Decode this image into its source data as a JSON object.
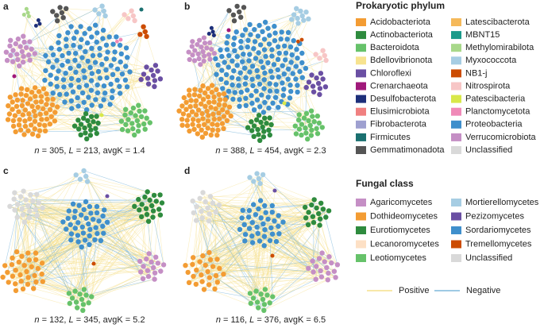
{
  "panels": [
    {
      "label": "a",
      "caption": [
        "n",
        " = 305, ",
        "L",
        " = 213, avgK = 1.4"
      ]
    },
    {
      "label": "b",
      "caption": [
        "n",
        " = 388, ",
        "L",
        " = 454, avgK = 2.3"
      ]
    },
    {
      "label": "c",
      "caption": [
        "n",
        " = 132, ",
        "L",
        " = 345, avgK = 5.2"
      ]
    },
    {
      "label": "d",
      "caption": [
        "n",
        " = 116, ",
        "L",
        " = 376, avgK = 6.5"
      ]
    }
  ],
  "legend_prokaryotic": {
    "title": "Prokaryotic phylum",
    "items": [
      {
        "name": "Acidobacteriota",
        "color": "#f39c33"
      },
      {
        "name": "Actinobacteriota",
        "color": "#2e8b3e"
      },
      {
        "name": "Bacteroidota",
        "color": "#66c26a"
      },
      {
        "name": "Bdellovibrionota",
        "color": "#f7e38f"
      },
      {
        "name": "Chloroflexi",
        "color": "#6a4fa3"
      },
      {
        "name": "Crenarchaeota",
        "color": "#a0197a"
      },
      {
        "name": "Desulfobacterota",
        "color": "#1d2f7a"
      },
      {
        "name": "Elusimicrobiota",
        "color": "#f08080"
      },
      {
        "name": "Fibrobacterota",
        "color": "#9ea0d0"
      },
      {
        "name": "Firmicutes",
        "color": "#1a7070"
      },
      {
        "name": "Gemmatimonadota",
        "color": "#555555"
      },
      {
        "name": "Latescibacterota",
        "color": "#f5b95a"
      },
      {
        "name": "MBNT15",
        "color": "#1a9a8a"
      },
      {
        "name": "Methylomirabilota",
        "color": "#a8d88a"
      },
      {
        "name": "Myxococcota",
        "color": "#a6cde3"
      },
      {
        "name": "NB1-j",
        "color": "#cc4c02"
      },
      {
        "name": "Nitrospirota",
        "color": "#f7c6c6"
      },
      {
        "name": "Patescibacteria",
        "color": "#d8e84a"
      },
      {
        "name": "Planctomycetota",
        "color": "#f08ab8"
      },
      {
        "name": "Proteobacteria",
        "color": "#3f8fcc"
      },
      {
        "name": "Verrucomicrobiota",
        "color": "#c58fc5"
      },
      {
        "name": "Unclassified",
        "color": "#d9d9d9"
      }
    ]
  },
  "legend_fungal": {
    "title": "Fungal class",
    "items": [
      {
        "name": "Agaricomycetes",
        "color": "#c58fc5"
      },
      {
        "name": "Dothideomycetes",
        "color": "#f39c33"
      },
      {
        "name": "Eurotiomycetes",
        "color": "#2e8b3e"
      },
      {
        "name": "Lecanoromycetes",
        "color": "#fde0c5"
      },
      {
        "name": "Leotiomycetes",
        "color": "#66c26a"
      },
      {
        "name": "Mortierellomycetes",
        "color": "#a6cde3"
      },
      {
        "name": "Pezizomycetes",
        "color": "#6a4fa3"
      },
      {
        "name": "Sordariomycetes",
        "color": "#3f8fcc"
      },
      {
        "name": "Tremellomycetes",
        "color": "#cc4c02"
      },
      {
        "name": "Unclassified",
        "color": "#d9d9d9"
      }
    ]
  },
  "edge_legend": [
    {
      "name": "Positive",
      "color": "#f5e08c"
    },
    {
      "name": "Negative",
      "color": "#7fb8dc"
    }
  ]
}
